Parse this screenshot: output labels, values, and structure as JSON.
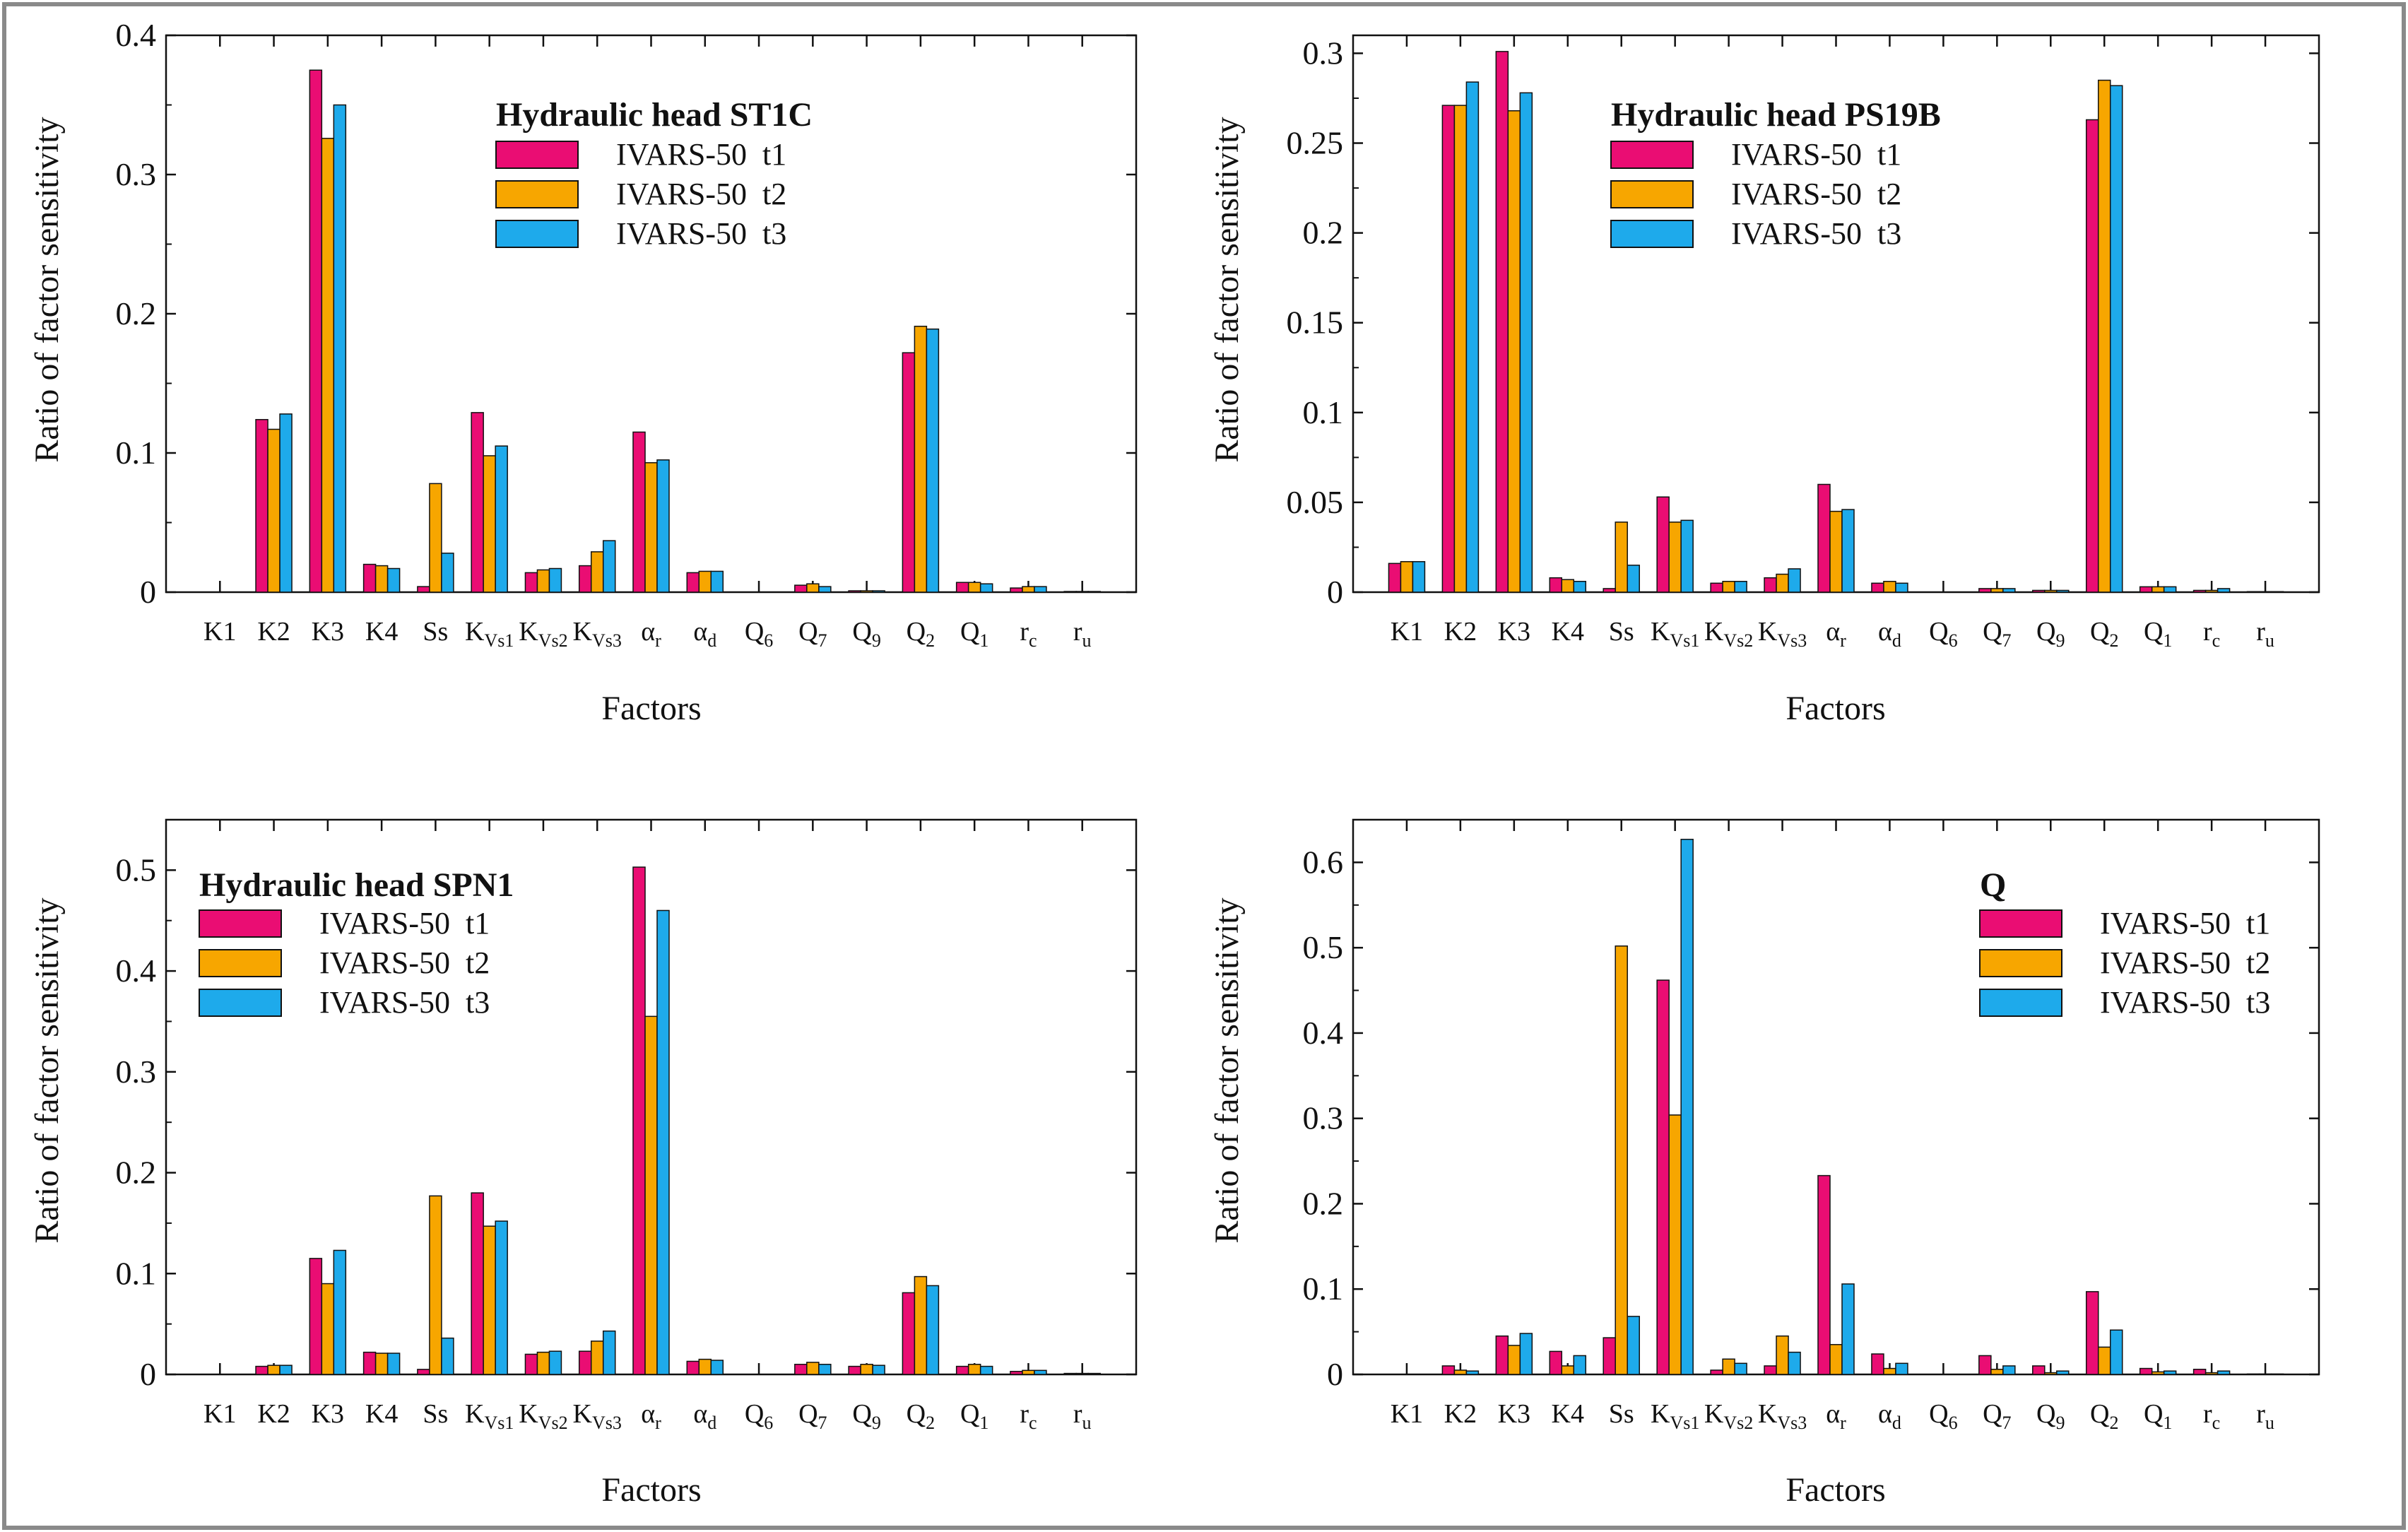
{
  "figure": {
    "series_colors": [
      "#ea0d73",
      "#f7a600",
      "#1eaaeb"
    ],
    "frame_color": "#8a8a8a"
  },
  "chart_data": [
    {
      "type": "bar",
      "id": "st1c",
      "title": "Hydraulic head ST1C",
      "xlabel": "Factors",
      "ylabel": "Ratio of factor sensitivity",
      "ylim": [
        0,
        0.4
      ],
      "yticks": [
        "0",
        "0.1",
        "0.2",
        "0.3",
        "0.4"
      ],
      "legend_position": "top-center",
      "categories": [
        "K1",
        "K2",
        "K3",
        "K4",
        "Ss",
        "K_Vs1",
        "K_Vs2",
        "K_Vs3",
        "α_r",
        "α_d",
        "Q_6",
        "Q_7",
        "Q_9",
        "Q_2",
        "Q_1",
        "r_c",
        "r_u"
      ],
      "series": [
        {
          "name": "IVARS-50  t1",
          "values": [
            0,
            0.124,
            0.375,
            0.02,
            0.004,
            0.129,
            0.014,
            0.019,
            0.115,
            0.014,
            0,
            0.005,
            0.001,
            0.172,
            0.007,
            0.003,
            0.0005
          ]
        },
        {
          "name": "IVARS-50  t2",
          "values": [
            0,
            0.117,
            0.326,
            0.019,
            0.078,
            0.098,
            0.016,
            0.029,
            0.093,
            0.015,
            0,
            0.006,
            0.001,
            0.191,
            0.007,
            0.004,
            0.0005
          ]
        },
        {
          "name": "IVARS-50  t3",
          "values": [
            0,
            0.128,
            0.35,
            0.017,
            0.028,
            0.105,
            0.017,
            0.037,
            0.095,
            0.015,
            0,
            0.004,
            0.001,
            0.189,
            0.006,
            0.004,
            0.0005
          ]
        }
      ]
    },
    {
      "type": "bar",
      "id": "ps19b",
      "title": "Hydraulic head PS19B",
      "xlabel": "Factors",
      "ylabel": "Ratio of factor sensitivity",
      "ylim": [
        0,
        0.31
      ],
      "yticks": [
        "0",
        "0.05",
        "0.1",
        "0.15",
        "0.2",
        "0.25",
        "0.3"
      ],
      "legend_position": "top-center",
      "categories": [
        "K1",
        "K2",
        "K3",
        "K4",
        "Ss",
        "K_Vs1",
        "K_Vs2",
        "K_Vs3",
        "α_r",
        "α_d",
        "Q_6",
        "Q_7",
        "Q_9",
        "Q_2",
        "Q_1",
        "r_c",
        "r_u"
      ],
      "series": [
        {
          "name": "IVARS-50  t1",
          "values": [
            0.016,
            0.271,
            0.301,
            0.008,
            0.002,
            0.053,
            0.005,
            0.008,
            0.06,
            0.005,
            0,
            0.002,
            0.001,
            0.263,
            0.003,
            0.001,
            0.0003
          ]
        },
        {
          "name": "IVARS-50  t2",
          "values": [
            0.017,
            0.271,
            0.268,
            0.007,
            0.039,
            0.039,
            0.006,
            0.01,
            0.045,
            0.006,
            0,
            0.002,
            0.001,
            0.285,
            0.003,
            0.001,
            0.0003
          ]
        },
        {
          "name": "IVARS-50  t3",
          "values": [
            0.017,
            0.284,
            0.278,
            0.006,
            0.015,
            0.04,
            0.006,
            0.013,
            0.046,
            0.005,
            0,
            0.002,
            0.001,
            0.282,
            0.003,
            0.002,
            0.0003
          ]
        }
      ]
    },
    {
      "type": "bar",
      "id": "spn1",
      "title": "Hydraulic head SPN1",
      "xlabel": "Factors",
      "ylabel": "Ratio of factor sensitivity",
      "ylim": [
        0,
        0.55
      ],
      "yticks": [
        "0",
        "0.1",
        "0.2",
        "0.3",
        "0.4",
        "0.5"
      ],
      "legend_position": "top-left",
      "categories": [
        "K1",
        "K2",
        "K3",
        "K4",
        "Ss",
        "K_Vs1",
        "K_Vs2",
        "K_Vs3",
        "α_r",
        "α_d",
        "Q_6",
        "Q_7",
        "Q_9",
        "Q_2",
        "Q_1",
        "r_c",
        "r_u"
      ],
      "series": [
        {
          "name": "IVARS-50  t1",
          "values": [
            0,
            0.008,
            0.115,
            0.022,
            0.005,
            0.18,
            0.02,
            0.023,
            0.503,
            0.013,
            0,
            0.01,
            0.008,
            0.081,
            0.008,
            0.003,
            0.001
          ]
        },
        {
          "name": "IVARS-50  t2",
          "values": [
            0,
            0.009,
            0.09,
            0.021,
            0.177,
            0.147,
            0.022,
            0.033,
            0.355,
            0.015,
            0,
            0.012,
            0.01,
            0.097,
            0.01,
            0.004,
            0.001
          ]
        },
        {
          "name": "IVARS-50  t3",
          "values": [
            0,
            0.009,
            0.123,
            0.021,
            0.036,
            0.152,
            0.023,
            0.043,
            0.46,
            0.014,
            0,
            0.01,
            0.009,
            0.088,
            0.008,
            0.004,
            0.001
          ]
        }
      ]
    },
    {
      "type": "bar",
      "id": "q",
      "title": "Q",
      "xlabel": "Factors",
      "ylabel": "Ratio of factor sensitivity",
      "ylim": [
        0,
        0.65
      ],
      "yticks": [
        "0",
        "0.1",
        "0.2",
        "0.3",
        "0.4",
        "0.5",
        "0.6"
      ],
      "legend_position": "top-right",
      "categories": [
        "K1",
        "K2",
        "K3",
        "K4",
        "Ss",
        "K_Vs1",
        "K_Vs2",
        "K_Vs3",
        "α_r",
        "α_d",
        "Q_6",
        "Q_7",
        "Q_9",
        "Q_2",
        "Q_1",
        "r_c",
        "r_u"
      ],
      "series": [
        {
          "name": "IVARS-50  t1",
          "values": [
            0,
            0.01,
            0.045,
            0.027,
            0.043,
            0.462,
            0.005,
            0.01,
            0.233,
            0.024,
            0,
            0.022,
            0.01,
            0.097,
            0.007,
            0.006,
            0.0005
          ]
        },
        {
          "name": "IVARS-50  t2",
          "values": [
            0,
            0.005,
            0.034,
            0.01,
            0.502,
            0.304,
            0.018,
            0.045,
            0.035,
            0.007,
            0,
            0.006,
            0.002,
            0.032,
            0.003,
            0.002,
            0.0005
          ]
        },
        {
          "name": "IVARS-50  t3",
          "values": [
            0,
            0.004,
            0.048,
            0.022,
            0.068,
            0.627,
            0.013,
            0.026,
            0.106,
            0.013,
            0,
            0.01,
            0.004,
            0.052,
            0.004,
            0.004,
            0.0005
          ]
        }
      ]
    }
  ]
}
